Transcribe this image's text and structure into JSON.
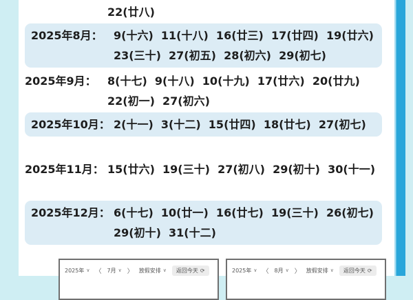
{
  "theme": {
    "page_background": "#cfeef3",
    "card_background": "#ffffff",
    "row_highlight": "#dcecf5",
    "accent_stripe": "#29a6da",
    "text_color": "#1d1d1d"
  },
  "calendar_list": {
    "carryover_dates": [
      "22(廿八)"
    ],
    "rows": [
      {
        "label": "2025年8月：",
        "dates": [
          "9(十六)",
          "11(十八)",
          "16(廿三)",
          "17(廿四)",
          "19(廿六)",
          "23(三十)",
          "27(初五)",
          "28(初六)",
          "29(初七)"
        ],
        "highlighted": true
      },
      {
        "label": "2025年9月：",
        "dates": [
          "8(十七)",
          "9(十八)",
          "10(十九)",
          "17(廿六)",
          "20(廿九)",
          "22(初一)",
          "27(初六)"
        ],
        "highlighted": false
      },
      {
        "label": "2025年10月：",
        "dates": [
          "2(十一)",
          "3(十二)",
          "15(廿四)",
          "18(廿七)",
          "27(初七)"
        ],
        "highlighted": true
      },
      {
        "label": "2025年11月：",
        "dates": [
          "15(廿六)",
          "19(三十)",
          "27(初八)",
          "29(初十)",
          "30(十一)"
        ],
        "highlighted": false
      },
      {
        "label": "2025年12月：",
        "dates": [
          "6(十七)",
          "10(廿一)",
          "16(廿七)",
          "19(三十)",
          "26(初七)",
          "29(初十)",
          "31(十二)"
        ],
        "highlighted": true
      }
    ]
  },
  "widgets": [
    {
      "year": "2025年",
      "month": "7月",
      "holiday_label": "放假安排",
      "today_label": "返回今天"
    },
    {
      "year": "2025年",
      "month": "8月",
      "holiday_label": "放假安排",
      "today_label": "返回今天"
    }
  ],
  "icons": {
    "dropdown": "∨",
    "prev": "〈",
    "next": "〉",
    "refresh": "⟳"
  }
}
